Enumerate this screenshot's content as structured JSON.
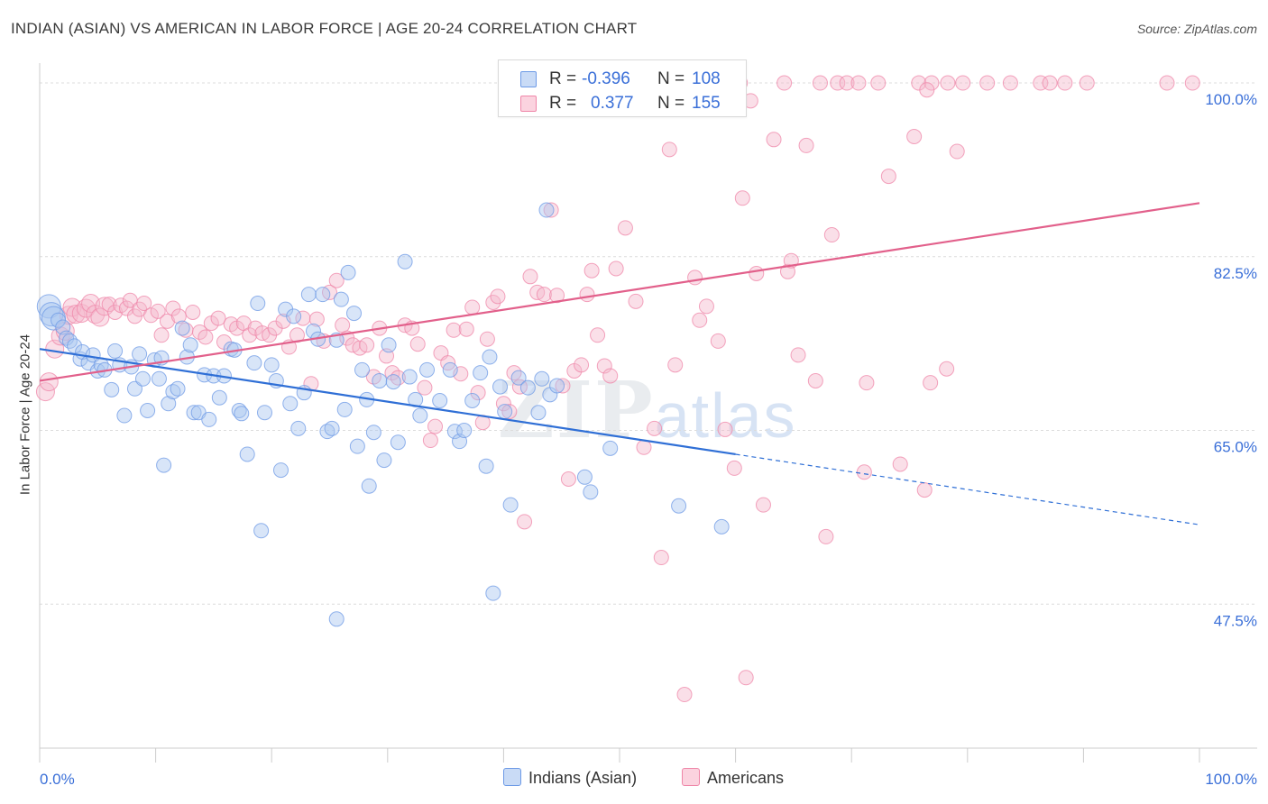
{
  "title": "INDIAN (ASIAN) VS AMERICAN IN LABOR FORCE | AGE 20-24 CORRELATION CHART",
  "source": "Source: ZipAtlas.com",
  "watermark": {
    "zip": "ZIP",
    "atlas": "atlas"
  },
  "legend": {
    "rows": [
      {
        "r_label": "R =",
        "r_value": "-0.396",
        "n_label": "N =",
        "n_value": "108",
        "color": "#a9c5ef"
      },
      {
        "r_label": "R =",
        "r_value": "0.377",
        "n_label": "N =",
        "n_value": "155",
        "color": "#f5b9cb"
      }
    ],
    "bottom": [
      {
        "label": "Indians (Asian)",
        "color": "#a9c5ef"
      },
      {
        "label": "Americans",
        "color": "#f5b9cb"
      }
    ]
  },
  "chart_data": {
    "type": "scatter",
    "title": "INDIAN (ASIAN) VS AMERICAN IN LABOR FORCE | AGE 20-24 CORRELATION CHART",
    "xlabel": "",
    "ylabel": "In Labor Force | Age 20-24",
    "xlim": [
      0,
      100
    ],
    "ylim": [
      33,
      102
    ],
    "x_tick_labels": [
      "0.0%",
      "100.0%"
    ],
    "y_ticks": [
      47.5,
      65.0,
      82.5,
      100.0
    ],
    "y_tick_labels": [
      "47.5%",
      "65.0%",
      "82.5%",
      "100.0%"
    ],
    "grid": true,
    "series": [
      {
        "name": "Indians (Asian)",
        "color": "#6d9ae6",
        "fill": "#a9c5ef",
        "trend": {
          "x0": 0,
          "y0": 73.2,
          "x1": 60,
          "y1": 62.6,
          "dash_x1": 100,
          "dash_y1": 55.5
        },
        "points": [
          [
            0.8,
            77.5
          ],
          [
            1.0,
            76.7
          ],
          [
            1.2,
            76.3
          ],
          [
            1.6,
            76.1
          ],
          [
            2.0,
            75.4
          ],
          [
            2.3,
            74.3
          ],
          [
            2.6,
            74.0
          ],
          [
            3.0,
            73.5
          ],
          [
            3.5,
            72.2
          ],
          [
            3.7,
            72.9
          ],
          [
            4.2,
            71.8
          ],
          [
            4.6,
            72.6
          ],
          [
            5.0,
            71.0
          ],
          [
            5.3,
            71.6
          ],
          [
            5.6,
            71.1
          ],
          [
            6.2,
            69.1
          ],
          [
            6.5,
            73.0
          ],
          [
            6.9,
            71.6
          ],
          [
            7.3,
            66.5
          ],
          [
            7.9,
            71.4
          ],
          [
            8.2,
            69.2
          ],
          [
            8.6,
            72.7
          ],
          [
            8.9,
            70.2
          ],
          [
            9.3,
            67.0
          ],
          [
            9.9,
            72.1
          ],
          [
            10.3,
            70.2
          ],
          [
            10.5,
            72.3
          ],
          [
            10.7,
            61.5
          ],
          [
            11.1,
            67.7
          ],
          [
            11.5,
            68.9
          ],
          [
            11.9,
            69.2
          ],
          [
            12.3,
            75.3
          ],
          [
            12.7,
            72.4
          ],
          [
            13.0,
            73.6
          ],
          [
            13.3,
            66.8
          ],
          [
            13.7,
            66.8
          ],
          [
            14.2,
            70.6
          ],
          [
            14.6,
            66.1
          ],
          [
            15.0,
            70.5
          ],
          [
            15.5,
            68.3
          ],
          [
            15.9,
            70.5
          ],
          [
            16.5,
            73.2
          ],
          [
            16.8,
            73.1
          ],
          [
            17.2,
            67.0
          ],
          [
            17.4,
            66.7
          ],
          [
            17.9,
            62.6
          ],
          [
            18.5,
            71.8
          ],
          [
            18.8,
            77.8
          ],
          [
            19.1,
            54.9
          ],
          [
            19.4,
            66.8
          ],
          [
            20.0,
            71.6
          ],
          [
            20.4,
            70.0
          ],
          [
            20.8,
            61.0
          ],
          [
            21.2,
            77.2
          ],
          [
            21.6,
            67.7
          ],
          [
            21.9,
            76.5
          ],
          [
            22.3,
            65.2
          ],
          [
            22.8,
            68.8
          ],
          [
            23.2,
            78.7
          ],
          [
            23.6,
            75.0
          ],
          [
            24.0,
            74.2
          ],
          [
            24.4,
            78.7
          ],
          [
            24.8,
            64.9
          ],
          [
            25.2,
            65.2
          ],
          [
            25.6,
            46.0
          ],
          [
            26.0,
            78.2
          ],
          [
            26.3,
            67.1
          ],
          [
            26.6,
            80.9
          ],
          [
            27.1,
            76.8
          ],
          [
            27.4,
            63.4
          ],
          [
            27.8,
            71.1
          ],
          [
            28.2,
            68.1
          ],
          [
            28.4,
            59.4
          ],
          [
            28.8,
            64.8
          ],
          [
            29.3,
            70.0
          ],
          [
            29.7,
            62.0
          ],
          [
            30.1,
            73.6
          ],
          [
            30.5,
            69.9
          ],
          [
            30.9,
            63.8
          ],
          [
            31.5,
            82.0
          ],
          [
            31.9,
            70.4
          ],
          [
            32.4,
            68.1
          ],
          [
            32.8,
            66.5
          ],
          [
            33.4,
            71.1
          ],
          [
            34.5,
            68.0
          ],
          [
            35.4,
            71.1
          ],
          [
            35.8,
            64.9
          ],
          [
            36.2,
            63.9
          ],
          [
            36.6,
            65.0
          ],
          [
            37.3,
            68.0
          ],
          [
            38.0,
            70.8
          ],
          [
            38.5,
            61.4
          ],
          [
            38.8,
            72.4
          ],
          [
            39.1,
            48.6
          ],
          [
            39.7,
            69.4
          ],
          [
            40.1,
            66.9
          ],
          [
            40.6,
            57.5
          ],
          [
            41.3,
            70.3
          ],
          [
            42.1,
            69.3
          ],
          [
            43.0,
            66.8
          ],
          [
            43.3,
            70.2
          ],
          [
            44.0,
            68.6
          ],
          [
            44.6,
            69.5
          ],
          [
            47.0,
            60.3
          ],
          [
            47.5,
            58.8
          ],
          [
            49.2,
            63.2
          ],
          [
            55.1,
            57.4
          ],
          [
            58.8,
            55.3
          ],
          [
            43.7,
            87.2
          ],
          [
            25.6,
            74.1
          ]
        ],
        "sizes": "r_base"
      },
      {
        "name": "Americans",
        "color": "#ef86a8",
        "fill": "#f5b9cb",
        "trend": {
          "x0": 0,
          "y0": 70.0,
          "x1": 100,
          "y1": 87.9
        },
        "points": [
          [
            0.5,
            68.9
          ],
          [
            0.8,
            69.9
          ],
          [
            1.3,
            73.2
          ],
          [
            1.8,
            74.5
          ],
          [
            2.2,
            75.0
          ],
          [
            2.5,
            76.6
          ],
          [
            2.8,
            77.4
          ],
          [
            3.1,
            76.7
          ],
          [
            3.6,
            76.8
          ],
          [
            4.0,
            77.3
          ],
          [
            4.4,
            77.8
          ],
          [
            4.8,
            76.7
          ],
          [
            5.2,
            76.4
          ],
          [
            5.6,
            77.5
          ],
          [
            6.0,
            77.7
          ],
          [
            6.5,
            76.9
          ],
          [
            7.0,
            77.6
          ],
          [
            7.5,
            77.3
          ],
          [
            7.8,
            78.1
          ],
          [
            8.2,
            76.5
          ],
          [
            8.6,
            77.2
          ],
          [
            9.0,
            77.8
          ],
          [
            9.6,
            76.6
          ],
          [
            10.2,
            77.0
          ],
          [
            10.5,
            74.6
          ],
          [
            11.0,
            76.0
          ],
          [
            11.5,
            77.3
          ],
          [
            12.0,
            76.5
          ],
          [
            12.6,
            75.1
          ],
          [
            13.2,
            76.9
          ],
          [
            13.8,
            74.9
          ],
          [
            14.3,
            74.4
          ],
          [
            14.8,
            75.8
          ],
          [
            15.4,
            76.3
          ],
          [
            15.9,
            73.9
          ],
          [
            16.5,
            75.7
          ],
          [
            17.0,
            75.3
          ],
          [
            17.6,
            75.8
          ],
          [
            18.1,
            74.6
          ],
          [
            18.6,
            75.3
          ],
          [
            19.2,
            74.8
          ],
          [
            19.8,
            74.6
          ],
          [
            20.3,
            75.3
          ],
          [
            21.0,
            76.0
          ],
          [
            21.5,
            73.4
          ],
          [
            22.2,
            74.6
          ],
          [
            22.7,
            76.3
          ],
          [
            23.4,
            69.7
          ],
          [
            23.9,
            76.2
          ],
          [
            24.5,
            74.0
          ],
          [
            25.0,
            78.9
          ],
          [
            25.6,
            80.1
          ],
          [
            26.1,
            75.6
          ],
          [
            26.5,
            74.3
          ],
          [
            27.0,
            73.6
          ],
          [
            27.6,
            73.3
          ],
          [
            28.2,
            73.6
          ],
          [
            28.8,
            70.4
          ],
          [
            29.3,
            75.3
          ],
          [
            29.9,
            72.5
          ],
          [
            30.4,
            70.8
          ],
          [
            30.9,
            70.3
          ],
          [
            31.5,
            75.6
          ],
          [
            32.1,
            75.3
          ],
          [
            32.6,
            73.7
          ],
          [
            33.2,
            69.3
          ],
          [
            33.7,
            64.0
          ],
          [
            34.1,
            65.4
          ],
          [
            34.6,
            72.8
          ],
          [
            35.2,
            71.8
          ],
          [
            35.7,
            75.1
          ],
          [
            36.3,
            70.7
          ],
          [
            36.8,
            75.2
          ],
          [
            37.3,
            77.4
          ],
          [
            37.8,
            68.8
          ],
          [
            38.2,
            65.8
          ],
          [
            38.6,
            74.2
          ],
          [
            39.1,
            77.9
          ],
          [
            39.5,
            78.5
          ],
          [
            40.0,
            67.7
          ],
          [
            40.5,
            66.9
          ],
          [
            40.9,
            70.8
          ],
          [
            41.4,
            69.4
          ],
          [
            41.8,
            55.8
          ],
          [
            42.3,
            80.5
          ],
          [
            42.9,
            78.9
          ],
          [
            43.5,
            78.7
          ],
          [
            44.1,
            87.2
          ],
          [
            44.6,
            78.6
          ],
          [
            45.1,
            69.5
          ],
          [
            45.6,
            60.1
          ],
          [
            46.1,
            71.0
          ],
          [
            46.7,
            71.6
          ],
          [
            47.2,
            78.7
          ],
          [
            47.6,
            81.1
          ],
          [
            48.1,
            74.6
          ],
          [
            48.7,
            71.5
          ],
          [
            49.2,
            70.5
          ],
          [
            49.7,
            81.3
          ],
          [
            50.5,
            85.4
          ],
          [
            51.4,
            78.0
          ],
          [
            52.1,
            63.3
          ],
          [
            53.0,
            65.2
          ],
          [
            53.6,
            52.2
          ],
          [
            54.3,
            93.3
          ],
          [
            54.8,
            71.6
          ],
          [
            55.6,
            38.4
          ],
          [
            56.5,
            80.4
          ],
          [
            56.9,
            76.1
          ],
          [
            57.5,
            77.5
          ],
          [
            58.5,
            74.0
          ],
          [
            59.1,
            65.1
          ],
          [
            59.9,
            61.2
          ],
          [
            60.6,
            88.4
          ],
          [
            60.9,
            40.1
          ],
          [
            61.3,
            98.2
          ],
          [
            61.8,
            80.8
          ],
          [
            62.4,
            57.5
          ],
          [
            63.3,
            94.3
          ],
          [
            64.5,
            81.0
          ],
          [
            64.8,
            82.1
          ],
          [
            65.4,
            72.6
          ],
          [
            66.1,
            93.7
          ],
          [
            66.9,
            70.0
          ],
          [
            67.8,
            54.3
          ],
          [
            68.3,
            84.7
          ],
          [
            71.1,
            60.8
          ],
          [
            71.3,
            69.8
          ],
          [
            73.2,
            90.6
          ],
          [
            74.2,
            61.6
          ],
          [
            75.4,
            94.6
          ],
          [
            76.3,
            59.0
          ],
          [
            76.8,
            69.8
          ],
          [
            78.2,
            71.2
          ],
          [
            79.1,
            93.1
          ],
          [
            64.2,
            100
          ],
          [
            67.3,
            100
          ],
          [
            68.8,
            100
          ],
          [
            69.6,
            100
          ],
          [
            70.6,
            100
          ],
          [
            72.3,
            100
          ],
          [
            75.8,
            100
          ],
          [
            76.9,
            100
          ],
          [
            78.3,
            100
          ],
          [
            79.6,
            100
          ],
          [
            81.7,
            100
          ],
          [
            83.7,
            100
          ],
          [
            86.3,
            100
          ],
          [
            87.1,
            100
          ],
          [
            88.4,
            100
          ],
          [
            90.3,
            100
          ],
          [
            97.2,
            100
          ],
          [
            99.4,
            100
          ],
          [
            60.4,
            100
          ],
          [
            76.5,
            99.3
          ]
        ]
      }
    ]
  }
}
